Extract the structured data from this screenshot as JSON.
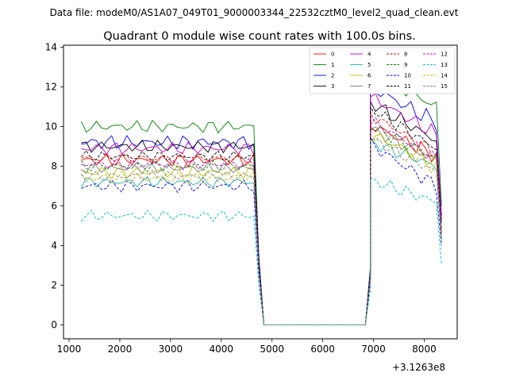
{
  "chart_data": {
    "type": "line",
    "suptitle": "Data file: modeM0/AS1A07_049T01_9000003344_22532cztM0_level2_quad_clean.evt",
    "title": "Quadrant 0 module wise count rates with 100.0s bins.",
    "xlabel": "",
    "ylabel": "",
    "x_offset_label": "+3.1263e8",
    "xlim": [
      890,
      8650
    ],
    "ylim": [
      -0.7,
      14.1
    ],
    "xticks": [
      1000,
      2000,
      3000,
      4000,
      5000,
      6000,
      7000,
      8000
    ],
    "yticks": [
      0,
      2,
      4,
      6,
      8,
      10,
      12,
      14
    ],
    "legend_position": "upper-right",
    "legend_columns": 4,
    "x": {
      "seg1_start": 1240,
      "seg1_end": 4640,
      "drop_x": [
        4740,
        4840
      ],
      "gap_x": [
        4840,
        6840
      ],
      "rise_x": [
        6840,
        6940
      ],
      "seg2_start": 6940,
      "seg2_end": 8240,
      "last_x": 8340,
      "step": 100
    },
    "series": [
      {
        "name": "0",
        "color": "#ff0000",
        "style": "solid",
        "base1": 8.3,
        "base2": 10.1,
        "end2": 8.5,
        "amp": 0.35,
        "last": 4.5,
        "drop": [
          3.0,
          0.9
        ],
        "rise": [
          1.0,
          2.5
        ]
      },
      {
        "name": "1",
        "color": "#008000",
        "style": "solid",
        "base1": 10.0,
        "base2": 12.8,
        "end2": 11.0,
        "amp": 0.35,
        "last": 6.0,
        "drop": [
          3.5,
          1.0
        ],
        "rise": [
          1.1,
          3.0
        ]
      },
      {
        "name": "2",
        "color": "#0000ff",
        "style": "solid",
        "base1": 9.2,
        "base2": 12.0,
        "end2": 10.2,
        "amp": 0.4,
        "last": 5.5,
        "drop": [
          3.3,
          1.0
        ],
        "rise": [
          1.0,
          2.8
        ]
      },
      {
        "name": "3",
        "color": "#000000",
        "style": "solid",
        "base1": 9.0,
        "base2": 11.2,
        "end2": 9.3,
        "amp": 0.35,
        "last": 5.2,
        "drop": [
          3.2,
          1.0
        ],
        "rise": [
          1.0,
          2.7
        ]
      },
      {
        "name": "4",
        "color": "#bf00bf",
        "style": "solid",
        "base1": 8.9,
        "base2": 11.5,
        "end2": 9.6,
        "amp": 0.35,
        "last": 5.3,
        "drop": [
          3.1,
          0.9
        ],
        "rise": [
          1.0,
          2.7
        ]
      },
      {
        "name": "5",
        "color": "#20b2aa",
        "style": "solid",
        "base1": 7.2,
        "base2": 9.2,
        "end2": 8.0,
        "amp": 0.3,
        "last": 4.2,
        "drop": [
          2.6,
          0.8
        ],
        "rise": [
          0.9,
          2.2
        ]
      },
      {
        "name": "6",
        "color": "#bfbf00",
        "style": "solid",
        "base1": 7.7,
        "base2": 9.6,
        "end2": 8.2,
        "amp": 0.35,
        "last": 4.4,
        "drop": [
          2.8,
          0.8
        ],
        "rise": [
          0.9,
          2.4
        ]
      },
      {
        "name": "7",
        "color": "#808080",
        "style": "solid",
        "base1": 7.9,
        "base2": 9.9,
        "end2": 8.3,
        "amp": 0.3,
        "last": 4.5,
        "drop": [
          2.8,
          0.8
        ],
        "rise": [
          0.9,
          2.4
        ]
      },
      {
        "name": "8",
        "color": "#ff0000",
        "style": "dashed",
        "base1": 8.4,
        "base2": 10.6,
        "end2": 8.7,
        "amp": 0.3,
        "last": 4.7,
        "drop": [
          3.0,
          0.9
        ],
        "rise": [
          1.0,
          2.6
        ]
      },
      {
        "name": "9",
        "color": "#008000",
        "style": "dashed",
        "base1": 8.0,
        "base2": 10.0,
        "end2": 8.4,
        "amp": 0.3,
        "last": 4.5,
        "drop": [
          2.9,
          0.8
        ],
        "rise": [
          0.9,
          2.5
        ]
      },
      {
        "name": "10",
        "color": "#0000ff",
        "style": "dashed",
        "base1": 7.0,
        "base2": 9.1,
        "end2": 7.0,
        "amp": 0.35,
        "last": 4.0,
        "drop": [
          2.5,
          0.7
        ],
        "rise": [
          0.8,
          2.2
        ]
      },
      {
        "name": "11",
        "color": "#000000",
        "style": "dashed",
        "base1": 8.5,
        "base2": 10.9,
        "end2": 8.9,
        "amp": 0.3,
        "last": 4.8,
        "drop": [
          3.1,
          0.9
        ],
        "rise": [
          1.0,
          2.6
        ]
      },
      {
        "name": "12",
        "color": "#bf00bf",
        "style": "dashed",
        "base1": 8.1,
        "base2": 10.3,
        "end2": 8.4,
        "amp": 0.3,
        "last": 4.6,
        "drop": [
          2.9,
          0.8
        ],
        "rise": [
          0.9,
          2.5
        ]
      },
      {
        "name": "13",
        "color": "#00bfbf",
        "style": "dashed",
        "base1": 5.5,
        "base2": 7.3,
        "end2": 6.2,
        "amp": 0.3,
        "last": 3.1,
        "drop": [
          2.0,
          0.6
        ],
        "rise": [
          0.7,
          1.8
        ]
      },
      {
        "name": "14",
        "color": "#bfbf00",
        "style": "dashed",
        "base1": 7.4,
        "base2": 9.6,
        "end2": 7.9,
        "amp": 0.35,
        "last": 4.3,
        "drop": [
          2.7,
          0.8
        ],
        "rise": [
          0.9,
          2.3
        ]
      },
      {
        "name": "15",
        "color": "#808080",
        "style": "dashed",
        "base1": 7.5,
        "base2": 9.4,
        "end2": 7.7,
        "amp": 0.3,
        "last": 4.3,
        "drop": [
          2.7,
          0.8
        ],
        "rise": [
          0.9,
          2.3
        ]
      }
    ]
  }
}
